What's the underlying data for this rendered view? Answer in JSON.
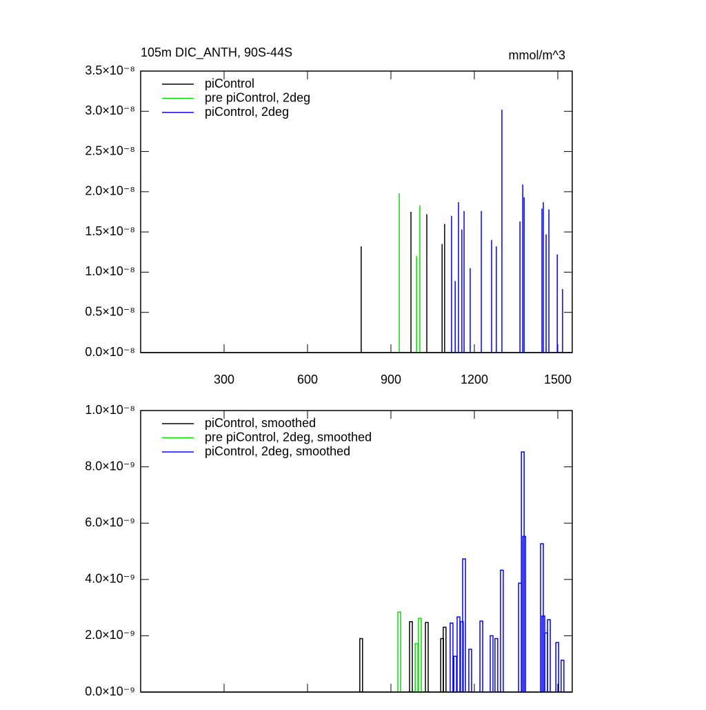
{
  "chart_data": [
    {
      "type": "spike",
      "title": "105m DIC_ANTH, 90S-44S",
      "units": "mmol/m^3",
      "xlim": [
        0,
        1552
      ],
      "xticks": [
        300,
        600,
        900,
        1200,
        1500
      ],
      "xtick_labels": true,
      "ylim": [
        0,
        3.5e-08
      ],
      "yticks": [
        {
          "value": 0,
          "label": "0.0×10⁻⁸"
        },
        {
          "value": 5e-09,
          "label": "0.5×10⁻⁸"
        },
        {
          "value": 1e-08,
          "label": "1.0×10⁻⁸"
        },
        {
          "value": 1.5e-08,
          "label": "1.5×10⁻⁸"
        },
        {
          "value": 2e-08,
          "label": "2.0×10⁻⁸"
        },
        {
          "value": 2.5e-08,
          "label": "2.5×10⁻⁸"
        },
        {
          "value": 3e-08,
          "label": "3.0×10⁻⁸"
        },
        {
          "value": 3.5e-08,
          "label": "3.5×10⁻⁸"
        }
      ],
      "series": [
        {
          "name": "piControl",
          "color": "#000000",
          "x": [
            793,
            972,
            1029,
            1084,
            1093
          ],
          "values": [
            1.32e-08,
            1.75e-08,
            1.72e-08,
            1.35e-08,
            1.6e-08
          ]
        },
        {
          "name": "pre piControl, 2deg",
          "color": "#00e000",
          "x": [
            930,
            992,
            1004
          ],
          "values": [
            1.98e-08,
            1.2e-08,
            1.83e-08
          ]
        },
        {
          "name": "piControl, 2deg",
          "color": "#0000ff",
          "x": [
            1118,
            1131,
            1143,
            1155,
            1163,
            1185,
            1225,
            1262,
            1279,
            1299,
            1364,
            1374,
            1379,
            1443,
            1448,
            1458,
            1468,
            1498,
            1517
          ],
          "values": [
            1.7e-08,
            8.9e-09,
            1.87e-08,
            1.53e-08,
            1.76e-08,
            1.05e-08,
            1.76e-08,
            1.4e-08,
            1.32e-08,
            3.02e-08,
            1.63e-08,
            2.09e-08,
            1.93e-08,
            1.79e-08,
            1.87e-08,
            1.47e-08,
            1.78e-08,
            1.22e-08,
            7.9e-09
          ]
        }
      ]
    },
    {
      "type": "step",
      "xlim": [
        0,
        1552
      ],
      "xticks": [
        300,
        600,
        900,
        1200,
        1500
      ],
      "xtick_labels": false,
      "ylim": [
        0,
        1e-08
      ],
      "yticks": [
        {
          "value": 0,
          "label": "0.0×10⁻⁹"
        },
        {
          "value": 2e-09,
          "label": "2.0×10⁻⁹"
        },
        {
          "value": 4e-09,
          "label": "4.0×10⁻⁹"
        },
        {
          "value": 6e-09,
          "label": "6.0×10⁻⁹"
        },
        {
          "value": 8e-09,
          "label": "8.0×10⁻⁹"
        },
        {
          "value": 1e-08,
          "label": "1.0×10⁻⁸"
        }
      ],
      "series": [
        {
          "name": "piControl, smoothed",
          "color": "#000000",
          "x": [
            793,
            972,
            1029,
            1084,
            1093
          ],
          "values": [
            1.9e-09,
            2.5e-09,
            2.47e-09,
            1.9e-09,
            2.3e-09
          ]
        },
        {
          "name": "pre piControl, 2deg, smoothed",
          "color": "#00e000",
          "x": [
            930,
            992,
            1004
          ],
          "values": [
            2.84e-09,
            1.72e-09,
            2.62e-09
          ]
        },
        {
          "name": "piControl, 2deg, smoothed",
          "color": "#0000ff",
          "x": [
            1118,
            1131,
            1143,
            1155,
            1163,
            1185,
            1225,
            1262,
            1279,
            1299,
            1364,
            1374,
            1379,
            1443,
            1448,
            1458,
            1468,
            1498,
            1517
          ],
          "values": [
            2.45e-09,
            1.27e-09,
            2.67e-09,
            2.5e-09,
            4.73e-09,
            1.52e-09,
            2.52e-09,
            2e-09,
            1.9e-09,
            4.33e-09,
            3.87e-09,
            8.53e-09,
            5.53e-09,
            5.27e-09,
            2.7e-09,
            2.1e-09,
            2.57e-09,
            1.76e-09,
            1.13e-09
          ]
        }
      ]
    }
  ]
}
